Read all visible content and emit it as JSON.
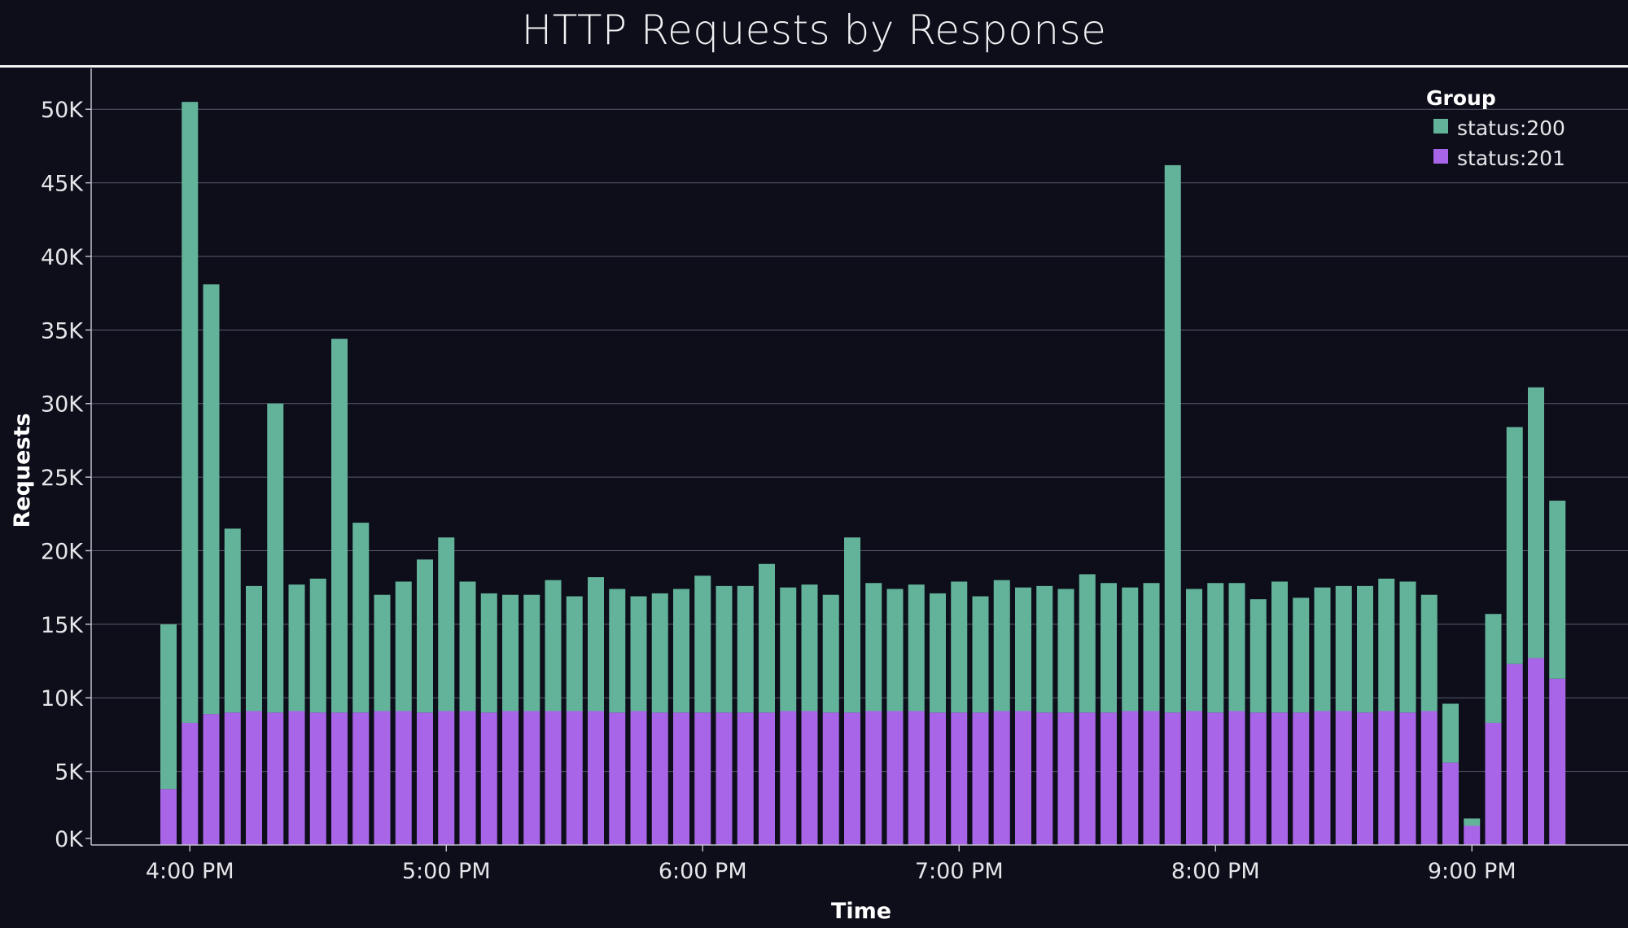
{
  "colors": {
    "background": "#0d0e19",
    "status_200": "#63b39b",
    "status_201": "#a965e8",
    "grid": "#5a5b70",
    "axis": "#bfc0cc"
  },
  "chart_data": {
    "type": "bar",
    "stacked": true,
    "title": "HTTP Requests by Response",
    "xlabel": "Time",
    "ylabel": "Requests",
    "ylim": [
      0,
      53000
    ],
    "yticks": [
      0,
      5000,
      10000,
      15000,
      20000,
      25000,
      30000,
      35000,
      40000,
      45000,
      50000
    ],
    "ytick_labels": [
      "0K",
      "5K",
      "10K",
      "15K",
      "20K",
      "25K",
      "30K",
      "35K",
      "40K",
      "45K",
      "50K"
    ],
    "xtick_labels": [
      "4:00 PM",
      "5:00 PM",
      "6:00 PM",
      "7:00 PM",
      "8:00 PM",
      "9:00 PM"
    ],
    "x_start": "3:55 PM",
    "x_interval_minutes": 5,
    "grid": true,
    "legend": {
      "title": "Group",
      "placement": "top-right"
    },
    "series": [
      {
        "name": "status:200",
        "values": [
          11200,
          42200,
          29200,
          12500,
          8500,
          21000,
          8600,
          9100,
          25400,
          12900,
          7900,
          8800,
          10400,
          11800,
          8800,
          8100,
          7900,
          7900,
          8900,
          7800,
          9100,
          8400,
          7800,
          8100,
          8400,
          9300,
          8600,
          8600,
          10100,
          8400,
          8600,
          8000,
          11900,
          8700,
          8300,
          8600,
          8100,
          8900,
          7900,
          8900,
          8400,
          8600,
          8400,
          9400,
          8800,
          8400,
          8700,
          37200,
          8300,
          8800,
          8700,
          7700,
          8900,
          7800,
          8400,
          8500,
          8600,
          9000,
          8900,
          7900,
          4000,
          500,
          7400,
          16100,
          18400,
          12100
        ]
      },
      {
        "name": "status:201",
        "values": [
          3800,
          8300,
          8900,
          9000,
          9100,
          9000,
          9100,
          9000,
          9000,
          9000,
          9100,
          9100,
          9000,
          9100,
          9100,
          9000,
          9100,
          9100,
          9100,
          9100,
          9100,
          9000,
          9100,
          9000,
          9000,
          9000,
          9000,
          9000,
          9000,
          9100,
          9100,
          9000,
          9000,
          9100,
          9100,
          9100,
          9000,
          9000,
          9000,
          9100,
          9100,
          9000,
          9000,
          9000,
          9000,
          9100,
          9100,
          9000,
          9100,
          9000,
          9100,
          9000,
          9000,
          9000,
          9100,
          9100,
          9000,
          9100,
          9000,
          9100,
          5600,
          1300,
          8300,
          12300,
          12700,
          11300
        ]
      }
    ]
  }
}
